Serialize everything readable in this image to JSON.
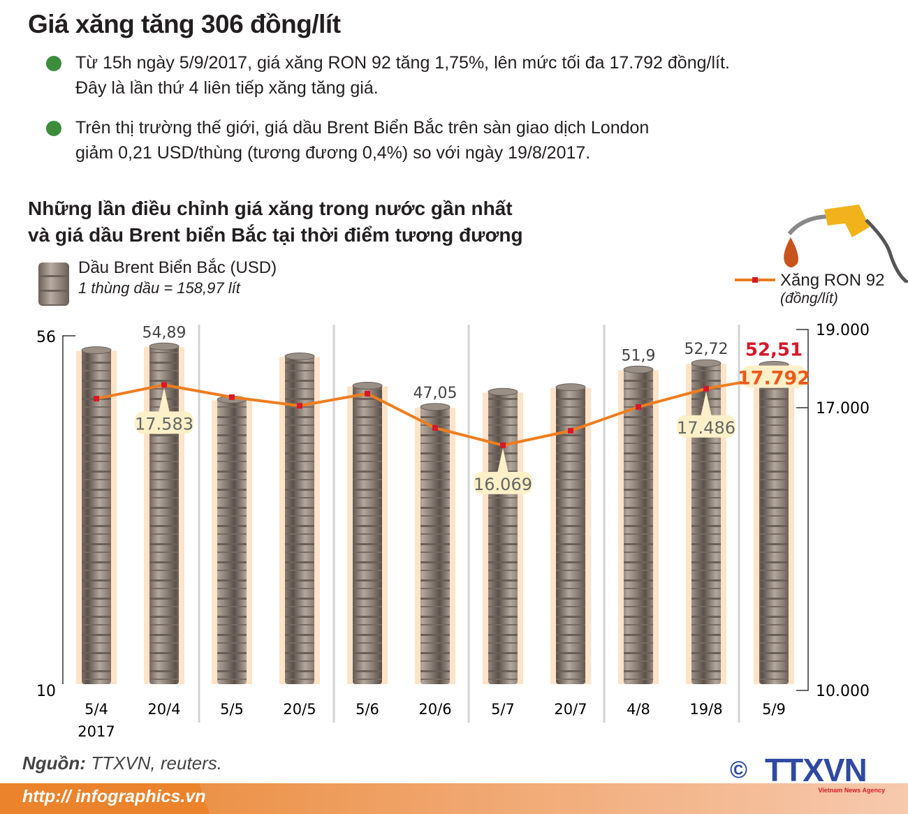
{
  "title": "Giá xăng tăng 306 đồng/lít",
  "bullets": [
    {
      "line1": "Từ 15h ngày 5/9/2017, giá xăng RON 92 tăng 1,75%, lên mức tối đa 17.792 đồng/lít.",
      "line2": "Đây là lần thứ 4 liên tiếp xăng tăng giá."
    },
    {
      "line1": "Trên thị trường thế giới, giá dầu Brent Biển Bắc trên sàn giao dịch London",
      "line2": "giảm 0,21 USD/thùng (tương đương 0,4%) so với ngày 19/8/2017."
    }
  ],
  "subtitle": {
    "line1": "Những lần điều chỉnh giá xăng trong nước gần nhất",
    "line2": "và giá dầu Brent biển Bắc tại thời điểm tương đương"
  },
  "legend": {
    "brent": "Dầu Brent Biển Bắc (USD)",
    "brent_note": "1 thùng dầu = 158,97 lít",
    "ron": "Xăng RON 92",
    "ron_unit": "(đồng/lít)"
  },
  "colors": {
    "line": "#ee7d1f",
    "marker": "#d7182a",
    "highlight": "#d7182a",
    "bar_glow": "#fde3c8",
    "callout": "#fbf0c8"
  },
  "chart_data": {
    "type": "bar+line",
    "categories": [
      "5/4",
      "20/4",
      "5/5",
      "20/5",
      "5/6",
      "20/6",
      "5/7",
      "20/7",
      "4/8",
      "19/8",
      "5/9"
    ],
    "first_category_year": "2017",
    "series": [
      {
        "name": "Dầu Brent Biển Bắc (USD)",
        "type": "bar",
        "axis": "left",
        "values": [
          54.4,
          54.89,
          48.0,
          53.6,
          49.8,
          47.05,
          49.0,
          49.6,
          51.9,
          52.72,
          52.51
        ],
        "labels": [
          "",
          "54,89",
          "",
          "",
          "",
          "47,05",
          "",
          "",
          "51,9",
          "52,72",
          "52,51"
        ]
      },
      {
        "name": "Xăng RON 92",
        "type": "line",
        "axis": "right",
        "values": [
          17230,
          17583,
          17270,
          17050,
          17360,
          16500,
          16069,
          16430,
          17020,
          17486,
          17792
        ],
        "labels": [
          "",
          "17.583",
          "",
          "",
          "",
          "",
          "16.069",
          "",
          "",
          "17.486",
          "17.792"
        ]
      }
    ],
    "left_axis": {
      "ticks": [
        "56",
        "10"
      ],
      "range": [
        10,
        56
      ]
    },
    "right_axis": {
      "ticks": [
        "19.000",
        "17.000",
        "10.000"
      ],
      "values": [
        19000,
        17000,
        10000
      ],
      "broken_scale": true
    }
  },
  "source_label": "Nguồn:",
  "source_text": " TTXVN, reuters.",
  "url": "http:// infographics.vn",
  "logo": {
    "text": "TTXVN",
    "tagline": "Vietnam News Agency"
  }
}
